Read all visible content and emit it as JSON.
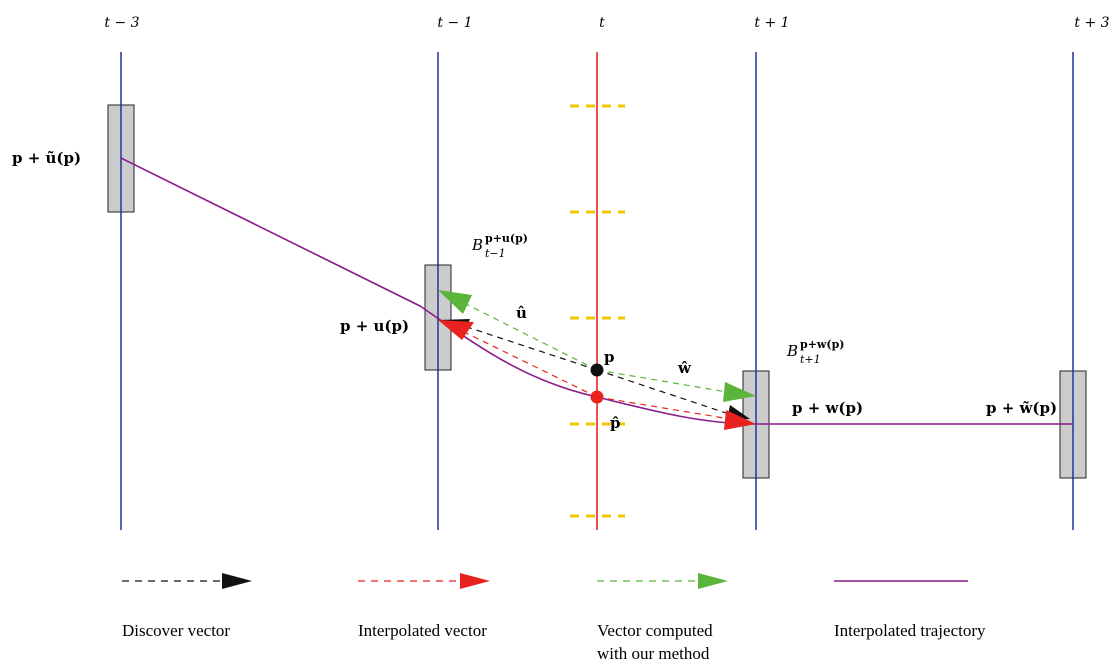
{
  "time_labels": [
    "t − 3",
    "t − 1",
    "t",
    "t + 1",
    "t + 3"
  ],
  "point_labels": {
    "p_tilde_u": "p + ũ(p)",
    "p_u": "p + u(p)",
    "p_w": "p + w(p)",
    "p_tilde_w": "p + w̃(p)",
    "p": "p",
    "p_hat": "p̂",
    "u_hat": "û",
    "w_hat": "ŵ",
    "block_prev_base": "B",
    "block_prev_sup": "p+u(p)",
    "block_prev_sub": "t−1",
    "block_next_base": "B",
    "block_next_sup": "p+w(p)",
    "block_next_sub": "t+1"
  },
  "legend": [
    {
      "label": "Discover vector",
      "style": "dashed-black"
    },
    {
      "label": "Interpolated vector",
      "style": "dashed-red"
    },
    {
      "label": "Vector computed",
      "label2": "with our method",
      "style": "dashed-green"
    },
    {
      "label": "Interpolated trajectory",
      "style": "solid-purple"
    }
  ],
  "colors": {
    "time_line": "#2b3f9e",
    "center_line": "#e8231f",
    "block_fill": "#cccccc",
    "trajectory": "#8b1a8b",
    "discover": "#111111",
    "interpolated": "#e8231f",
    "computed": "#5bb53a",
    "tick": "#f5c400"
  }
}
